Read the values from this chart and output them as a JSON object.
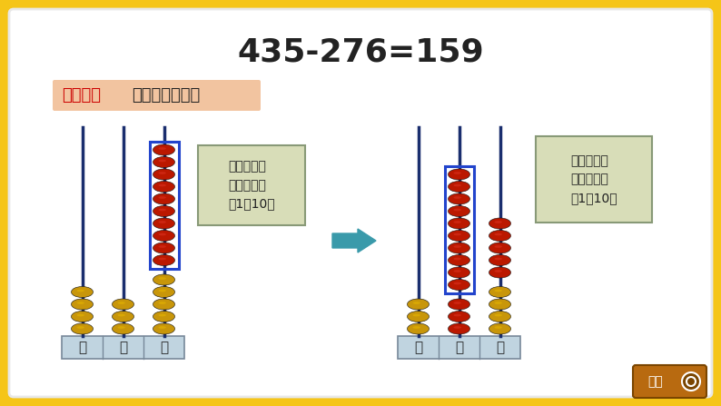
{
  "title": "435-276=159",
  "method_label": "方法二：",
  "method_text": "借助计数器计算",
  "bg_outer": "#F5C518",
  "bg_inner": "#FFFFFF",
  "bg_method": "#F2C4A0",
  "text_red": "#CC0000",
  "text_black": "#222222",
  "bead_yellow": "#C8960A",
  "bead_yellow_light": "#E8B800",
  "bead_red": "#BB1800",
  "bead_red_light": "#DD3322",
  "pole_color": "#1A2E6E",
  "box_color": "#C0D4E0",
  "note_box_bg": "#D8DDB8",
  "note1": "个位不够减\n时，向十位\n借1当10。",
  "note2": "十位不够减\n时，向百位\n借1当10。",
  "arrow_color": "#3A9AAA",
  "back_btn_bg": "#B86A10",
  "back_btn_text": "返回",
  "blue_rect": "#2244CC"
}
